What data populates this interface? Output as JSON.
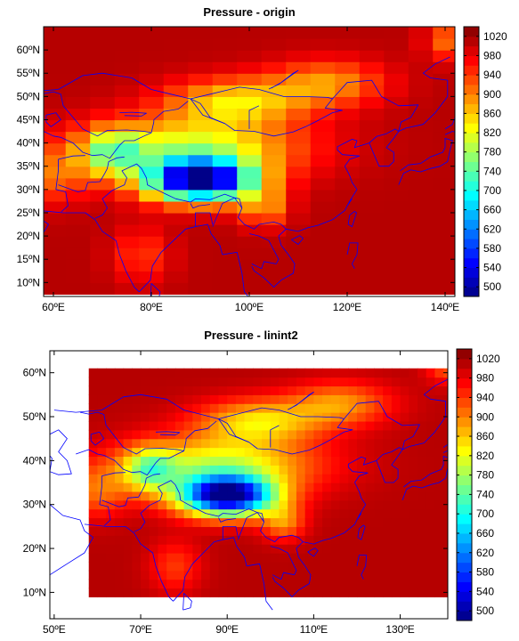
{
  "chart_data": [
    {
      "type": "heatmap",
      "title": "Pressure - origin",
      "xlim": [
        58,
        142
      ],
      "ylim": [
        7,
        65
      ],
      "lon_start": 57.5,
      "lon_step": 5,
      "lat_start": 7.5,
      "lat_step": 2.5,
      "x_ticks": [
        "60ºE",
        "80ºE",
        "100ºE",
        "120ºE",
        "140ºE"
      ],
      "x_tick_values": [
        60,
        80,
        100,
        120,
        140
      ],
      "y_ticks": [
        "10ºN",
        "15ºN",
        "20ºN",
        "25ºN",
        "30ºN",
        "35ºN",
        "40ºN",
        "45ºN",
        "50ºN",
        "55ºN",
        "60ºN"
      ],
      "y_tick_values": [
        10,
        15,
        20,
        25,
        30,
        35,
        40,
        45,
        50,
        55,
        60
      ],
      "colorbar_labels": [
        "500",
        "540",
        "580",
        "620",
        "660",
        "700",
        "740",
        "780",
        "820",
        "860",
        "900",
        "940",
        "980",
        "1020"
      ],
      "colorbar_range": [
        480,
        1040
      ]
    },
    {
      "type": "heatmap",
      "title": "Pressure - linint2",
      "xlim": [
        49,
        141
      ],
      "ylim": [
        4,
        65
      ],
      "lon_start": 58,
      "lon_end": 141,
      "lat_start": 9,
      "lat_end": 61,
      "x_ticks": [
        "50ºE",
        "70ºE",
        "90ºE",
        "110ºE",
        "130ºE"
      ],
      "x_tick_values": [
        50,
        70,
        90,
        110,
        130
      ],
      "y_ticks": [
        "10ºN",
        "20ºN",
        "30ºN",
        "40ºN",
        "50ºN",
        "60ºN"
      ],
      "y_tick_values": [
        10,
        20,
        30,
        40,
        50,
        60
      ],
      "colorbar_labels": [
        "500",
        "540",
        "580",
        "620",
        "660",
        "700",
        "740",
        "780",
        "820",
        "860",
        "900",
        "940",
        "980",
        "1020"
      ],
      "colorbar_range": [
        480,
        1040
      ]
    }
  ]
}
